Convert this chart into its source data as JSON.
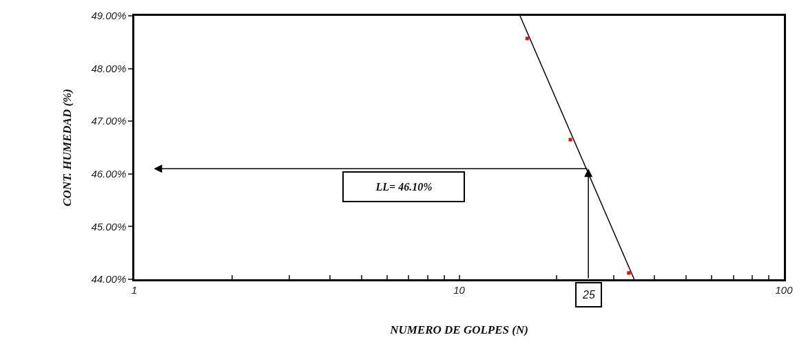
{
  "chart_data": {
    "type": "scatter",
    "xlabel": "NUMERO DE GOLPES (N)",
    "ylabel": "CONT. HUMEDAD (%)",
    "log": "x",
    "xlim": [
      1,
      100
    ],
    "ylim": [
      44,
      49
    ],
    "xticks": [
      1,
      {
        "value": 2,
        "label": null
      },
      {
        "value": 3,
        "label": null
      },
      {
        "value": 4,
        "label": null
      },
      {
        "value": 5,
        "label": null
      },
      {
        "value": 6,
        "label": null
      },
      {
        "value": 7,
        "label": null
      },
      {
        "value": 8,
        "label": null
      },
      {
        "value": 9,
        "label": null
      },
      10,
      {
        "value": 20,
        "label": null
      },
      {
        "value": 30,
        "label": null
      },
      {
        "value": 40,
        "label": null
      },
      {
        "value": 50,
        "label": null
      },
      {
        "value": 60,
        "label": null
      },
      {
        "value": 70,
        "label": null
      },
      {
        "value": 80,
        "label": null
      },
      {
        "value": 90,
        "label": null
      },
      100
    ],
    "yticks": [
      {
        "value": 44,
        "label": "44.00%"
      },
      {
        "value": 45,
        "label": "45.00%"
      },
      {
        "value": 46,
        "label": "46.00%"
      },
      {
        "value": 47,
        "label": "47.00%"
      },
      {
        "value": 48,
        "label": "48.00%"
      },
      {
        "value": 49,
        "label": "49.00%"
      }
    ],
    "series": [
      {
        "marker": "square",
        "color": "#ff0000",
        "x": [
          16.2,
          22.0,
          33.3
        ],
        "values": [
          48.57,
          46.65,
          44.12
        ]
      },
      {
        "type": "line",
        "color": "#000000",
        "x": [
          15.4,
          34.6
        ],
        "values": [
          49,
          44
        ]
      }
    ],
    "annotations": [
      {
        "text": "25",
        "x": 25,
        "y": 46.1
      },
      "LL= 46.10%"
    ]
  }
}
